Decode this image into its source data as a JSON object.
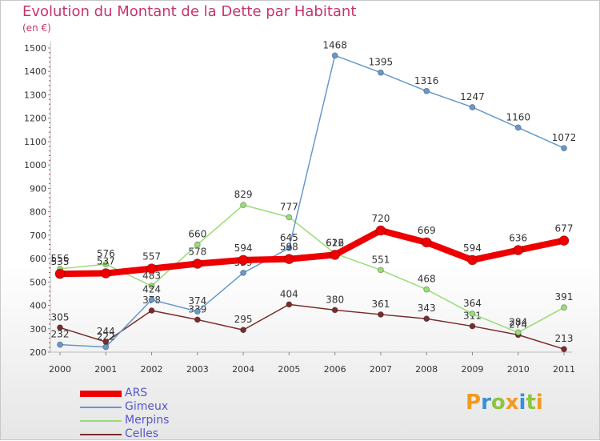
{
  "chart_data": {
    "type": "line",
    "title": "Evolution du Montant de la Dette par Habitant",
    "subtitle": "(en €)",
    "xlabel": "",
    "ylabel": "",
    "categories": [
      "2000",
      "2001",
      "2002",
      "2003",
      "2004",
      "2005",
      "2006",
      "2007",
      "2008",
      "2009",
      "2010",
      "2011"
    ],
    "ylim": [
      200,
      1500
    ],
    "yticks": [
      200,
      300,
      400,
      500,
      600,
      700,
      800,
      900,
      1000,
      1100,
      1200,
      1300,
      1400,
      1500
    ],
    "grid": false,
    "legend_position": "bottom-left",
    "series": [
      {
        "name": "Celles",
        "color": "#7a2c2c",
        "width": 1.5,
        "marker": 3.5,
        "values": [
          305,
          244,
          378,
          339,
          295,
          404,
          380,
          361,
          343,
          311,
          274,
          213
        ]
      },
      {
        "name": "Merpins",
        "color": "#99dd77",
        "width": 1.5,
        "marker": 3.5,
        "values": [
          556,
          576,
          483,
          660,
          829,
          777,
          622,
          551,
          468,
          364,
          284,
          391
        ]
      },
      {
        "name": "Gimeux",
        "color": "#6699cc",
        "width": 1.5,
        "marker": 3.5,
        "values": [
          232,
          222,
          424,
          374,
          539,
          645,
          1468,
          1395,
          1316,
          1247,
          1160,
          1072
        ]
      },
      {
        "name": "ARS",
        "color": "#ee0000",
        "width": 8,
        "marker": 6,
        "values": [
          535,
          537,
          557,
          578,
          594,
          598,
          616,
          720,
          669,
          594,
          636,
          677
        ]
      }
    ]
  },
  "legend": {
    "items": [
      {
        "label": "ARS",
        "color": "#ee0000"
      },
      {
        "label": "Gimeux",
        "color": "#6699cc"
      },
      {
        "label": "Merpins",
        "color": "#99dd77"
      },
      {
        "label": "Celles",
        "color": "#7a2c2c"
      }
    ]
  },
  "logo": {
    "text": "Proxiti"
  }
}
